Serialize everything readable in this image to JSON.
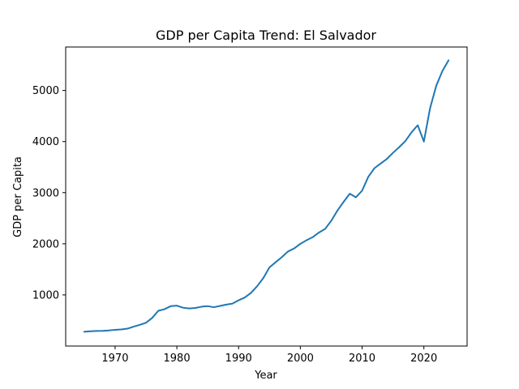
{
  "chart_data": {
    "type": "line",
    "title": "GDP per Capita Trend: El Salvador",
    "xlabel": "Year",
    "ylabel": "GDP per Capita",
    "xlim": [
      1962,
      2027
    ],
    "ylim": [
      0,
      5850
    ],
    "xticks": [
      1970,
      1980,
      1990,
      2000,
      2010,
      2020
    ],
    "yticks": [
      1000,
      2000,
      3000,
      4000,
      5000
    ],
    "grid": false,
    "legend": "none",
    "series": [
      {
        "color": "#1f77b4",
        "x": [
          1965,
          1966,
          1967,
          1968,
          1969,
          1970,
          1971,
          1972,
          1973,
          1974,
          1975,
          1976,
          1977,
          1978,
          1979,
          1980,
          1981,
          1982,
          1983,
          1984,
          1985,
          1986,
          1987,
          1988,
          1989,
          1990,
          1991,
          1992,
          1993,
          1994,
          1995,
          1996,
          1997,
          1998,
          1999,
          2000,
          2001,
          2002,
          2003,
          2004,
          2005,
          2006,
          2007,
          2008,
          2009,
          2010,
          2011,
          2012,
          2013,
          2014,
          2015,
          2016,
          2017,
          2018,
          2019,
          2020,
          2021,
          2022,
          2023,
          2024
        ],
        "y": [
          280,
          290,
          295,
          297,
          305,
          318,
          325,
          340,
          380,
          415,
          455,
          550,
          690,
          720,
          780,
          790,
          750,
          735,
          745,
          770,
          780,
          760,
          785,
          810,
          830,
          895,
          950,
          1040,
          1170,
          1330,
          1540,
          1640,
          1740,
          1850,
          1910,
          2000,
          2070,
          2130,
          2220,
          2290,
          2450,
          2650,
          2820,
          2980,
          2910,
          3040,
          3310,
          3480,
          3570,
          3660,
          3780,
          3890,
          4010,
          4180,
          4320,
          4000,
          4650,
          5090,
          5380,
          5590
        ]
      }
    ]
  }
}
